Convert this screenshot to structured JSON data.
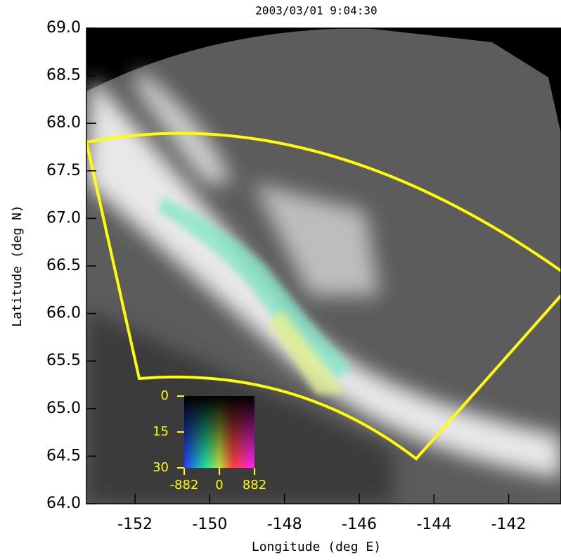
{
  "chart_data": {
    "type": "image",
    "title": "2003/03/01    9:04:30",
    "x_label": "Longitude (deg E)",
    "y_label": "Latitude (deg N)",
    "xlim": [
      -153.3,
      -140.6
    ],
    "ylim": [
      64,
      69
    ],
    "xticks": [
      -152,
      -150,
      -148,
      -146,
      -144,
      -142
    ],
    "yticks": [
      {
        "value": 64,
        "label": "64.0"
      },
      64.5,
      {
        "value": 65,
        "label": "65.0"
      },
      65.5,
      {
        "value": 66,
        "label": "66.0"
      },
      66.5,
      {
        "value": 67,
        "label": "67.0"
      },
      67.5,
      {
        "value": 68,
        "label": "68.0"
      },
      68.5,
      {
        "value": 69,
        "label": "69.0"
      }
    ],
    "colorbar": {
      "xlim": [
        -882,
        882
      ],
      "xticks": [
        -882,
        0,
        882
      ],
      "ylim": [
        0,
        30
      ],
      "yticks": [
        0,
        15,
        30
      ],
      "color": "#ffff00"
    },
    "overlay_color": "#ffff00"
  }
}
